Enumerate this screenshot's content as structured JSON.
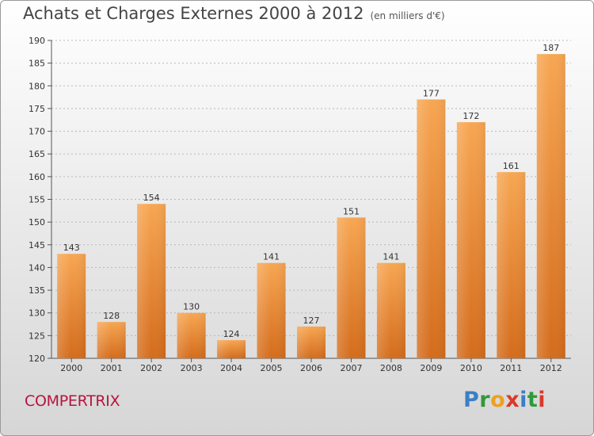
{
  "header": {
    "title": "Achats et Charges Externes 2000 à 2012",
    "subtitle": "(en milliers d'€)"
  },
  "footer": {
    "commune": "COMPERTRIX",
    "logo": "Proxiti",
    "logo_colors": [
      "#3b7fc4",
      "#2e9a3a",
      "#f0a020",
      "#d93a2a",
      "#3b7fc4",
      "#2e9a3a",
      "#d93a2a"
    ]
  },
  "colors": {
    "bar_top": "#f7a652",
    "bar_bottom": "#d46c1c",
    "axis": "#555555",
    "grid": "#b8b8b8"
  },
  "chart_data": {
    "type": "bar",
    "categories": [
      "2000",
      "2001",
      "2002",
      "2003",
      "2004",
      "2005",
      "2006",
      "2007",
      "2008",
      "2009",
      "2010",
      "2011",
      "2012"
    ],
    "values": [
      143,
      128,
      154,
      130,
      124,
      141,
      127,
      151,
      141,
      177,
      172,
      161,
      187
    ],
    "ylim": [
      120,
      190
    ],
    "yticks": [
      120,
      125,
      130,
      135,
      140,
      145,
      150,
      155,
      160,
      165,
      170,
      175,
      180,
      185,
      190
    ],
    "grid": true,
    "title": "Achats et Charges Externes 2000 à 2012",
    "subtitle": "(en milliers d'€)",
    "xlabel": "",
    "ylabel": ""
  }
}
